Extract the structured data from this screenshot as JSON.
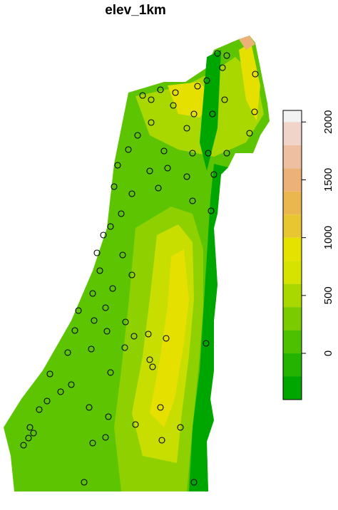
{
  "title": "elev_1km",
  "legend": {
    "lim": [
      -400,
      2100
    ],
    "ticks": [
      0,
      500,
      1000,
      1500,
      2000
    ],
    "breaks": [
      -400,
      -200,
      0,
      200,
      400,
      600,
      800,
      1000,
      1200,
      1400,
      1600,
      1800,
      2000,
      2100
    ],
    "colors": [
      "#00a600",
      "#24b300",
      "#4dc000",
      "#7acc00",
      "#a8d800",
      "#d6e300",
      "#e6e200",
      "#e8c632",
      "#eab64e",
      "#ecb176",
      "#eebfa1",
      "#f0d3c9",
      "#f2f2f2"
    ]
  }
}
